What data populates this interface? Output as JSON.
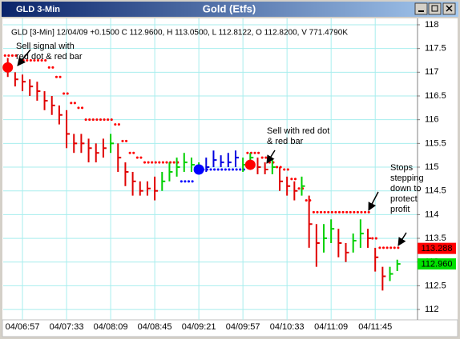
{
  "window": {
    "title_left": "GLD 3-Min",
    "title_center": "Gold (Etfs)"
  },
  "chart_data": {
    "type": "ohlc",
    "info": "GLD [3-Min] 12/04/09 +0.1500 C 112.9600, H 113.0500, L 112.8122, O 112.8200, V 771.4790K",
    "categories": [
      null,
      null,
      "04/06:57",
      null,
      null,
      null,
      null,
      null,
      "04/07:33",
      null,
      null,
      null,
      null,
      null,
      "04/08:09",
      null,
      null,
      null,
      null,
      null,
      "04/08:45",
      null,
      null,
      null,
      null,
      null,
      "04/09:21",
      null,
      null,
      null,
      null,
      null,
      "04/09:57",
      null,
      null,
      null,
      null,
      null,
      "04/10:33",
      null,
      null,
      null,
      null,
      null,
      "04/11:09",
      null,
      null,
      null,
      null,
      null,
      "04/11:45",
      null,
      null,
      null
    ],
    "high": [
      117.3,
      117.0,
      116.95,
      116.85,
      116.8,
      116.6,
      116.5,
      116.3,
      116.2,
      115.7,
      115.7,
      115.6,
      115.5,
      115.6,
      115.7,
      115.5,
      115.1,
      114.9,
      114.7,
      114.7,
      114.8,
      114.9,
      115.1,
      115.2,
      115.3,
      115.2,
      115.1,
      115.2,
      115.35,
      115.25,
      115.3,
      115.35,
      115.2,
      115.3,
      115.2,
      115.1,
      115.15,
      115.0,
      114.8,
      114.7,
      114.8,
      114.4,
      113.8,
      113.8,
      113.9,
      113.7,
      113.4,
      113.6,
      113.9,
      113.7,
      113.3,
      112.9,
      112.9,
      113.05
    ],
    "low": [
      116.9,
      116.7,
      116.6,
      116.5,
      116.4,
      116.2,
      116.1,
      115.9,
      115.4,
      115.3,
      115.3,
      115.1,
      115.1,
      115.2,
      115.3,
      114.9,
      114.6,
      114.4,
      114.4,
      114.4,
      114.3,
      114.5,
      114.7,
      114.8,
      114.9,
      114.9,
      114.9,
      114.9,
      115.0,
      115.0,
      115.0,
      115.0,
      114.9,
      115.0,
      114.85,
      114.85,
      114.85,
      114.5,
      114.4,
      114.3,
      114.4,
      113.3,
      112.9,
      113.2,
      113.4,
      113.1,
      113.0,
      113.2,
      113.3,
      113.3,
      112.8,
      112.4,
      112.6,
      112.81
    ],
    "close": [
      117.1,
      116.85,
      116.8,
      116.7,
      116.6,
      116.4,
      116.3,
      116.1,
      115.7,
      115.5,
      115.5,
      115.4,
      115.3,
      115.4,
      115.5,
      115.2,
      114.9,
      114.7,
      114.5,
      114.55,
      114.5,
      114.7,
      114.9,
      115.0,
      115.1,
      115.05,
      115.0,
      115.0,
      115.15,
      115.1,
      115.1,
      115.2,
      115.05,
      115.2,
      115.0,
      114.95,
      115.0,
      114.7,
      114.6,
      114.5,
      114.6,
      113.8,
      113.4,
      113.5,
      113.7,
      113.4,
      113.2,
      113.45,
      113.6,
      113.5,
      113.1,
      112.7,
      112.75,
      112.96
    ],
    "colors": [
      "#e00000",
      "#e00000",
      "#e00000",
      "#e00000",
      "#e00000",
      "#e00000",
      "#e00000",
      "#e00000",
      "#e00000",
      "#e00000",
      "#e00000",
      "#e00000",
      "#e00000",
      "#e00000",
      "#00d000",
      "#e00000",
      "#e00000",
      "#e00000",
      "#e00000",
      "#e00000",
      "#e00000",
      "#00d000",
      "#00d000",
      "#00d000",
      "#00d000",
      "#00d000",
      "#00d000",
      "#0000e0",
      "#0000e0",
      "#0000e0",
      "#0000e0",
      "#0000e0",
      "#00d000",
      "#00d000",
      "#e00000",
      "#e00000",
      "#00d000",
      "#e00000",
      "#e00000",
      "#e00000",
      "#00d000",
      "#e00000",
      "#e00000",
      "#00d000",
      "#00d000",
      "#e00000",
      "#e00000",
      "#00d000",
      "#00d000",
      "#e00000",
      "#e00000",
      "#e00000",
      "#00d000",
      "#00d000"
    ],
    "stops": [
      {
        "color": "#ff0000",
        "values": [
          117.35,
          117.35,
          117.25,
          117.25,
          117.25,
          117.25,
          117.1,
          116.9,
          116.55,
          116.35,
          116.25,
          116.0,
          116.0,
          116.0,
          116.0,
          115.9,
          115.55,
          115.3,
          115.2,
          115.1,
          115.1,
          115.1,
          115.1,
          115.1,
          null,
          null,
          null,
          null,
          null,
          null,
          null,
          null,
          null,
          115.3,
          115.3,
          115.2,
          115.1,
          115.0,
          114.95,
          114.75,
          114.55,
          114.3,
          114.05,
          114.05,
          114.05,
          114.05,
          114.05,
          114.05,
          114.05,
          114.05,
          113.5,
          113.3,
          113.3,
          113.3
        ]
      },
      {
        "color": "#0000ff",
        "values": [
          null,
          null,
          null,
          null,
          null,
          null,
          null,
          null,
          null,
          null,
          null,
          null,
          null,
          null,
          null,
          null,
          null,
          null,
          null,
          null,
          null,
          null,
          null,
          null,
          114.7,
          114.7,
          114.95,
          114.95,
          114.95,
          114.95,
          114.95,
          114.95,
          114.95,
          null,
          null,
          null,
          null,
          null,
          null,
          null,
          null,
          null,
          null,
          null,
          null,
          null,
          null,
          null,
          null,
          null,
          null,
          null,
          null,
          null
        ]
      }
    ],
    "signals": [
      {
        "color": "#ff0000",
        "values": [
          117.1,
          null,
          null,
          null,
          null,
          null,
          null,
          null,
          null,
          null,
          null,
          null,
          null,
          null,
          null,
          null,
          null,
          null,
          null,
          null,
          null,
          null,
          null,
          null,
          null,
          null,
          null,
          null,
          null,
          null,
          null,
          null,
          null,
          115.05,
          null,
          null,
          null,
          null,
          null,
          null,
          null,
          null,
          null,
          null,
          null,
          null,
          null,
          null,
          null,
          null,
          null,
          null,
          null,
          null
        ]
      },
      {
        "color": "#0000ff",
        "values": [
          null,
          null,
          null,
          null,
          null,
          null,
          null,
          null,
          null,
          null,
          null,
          null,
          null,
          null,
          null,
          null,
          null,
          null,
          null,
          null,
          null,
          null,
          null,
          null,
          null,
          null,
          114.95,
          null,
          null,
          null,
          null,
          null,
          null,
          null,
          null,
          null,
          null,
          null,
          null,
          null,
          null,
          null,
          null,
          null,
          null,
          null,
          null,
          null,
          null,
          null,
          null,
          null,
          null,
          null
        ]
      }
    ],
    "last_prices": [
      {
        "value": 113.288,
        "label": "113.288",
        "color": "#ff0000"
      },
      {
        "value": 112.96,
        "label": "112.960",
        "color": "#00e000"
      }
    ],
    "annotations": [
      {
        "lines": [
          "Sell signal with",
          "red dot & red bar"
        ]
      },
      {
        "lines": [
          "Sell with red dot",
          "& red bar"
        ]
      },
      {
        "lines": [
          "Stops",
          "stepping",
          "down to",
          "protect",
          "profit"
        ]
      }
    ],
    "ylim": [
      111.85,
      118.05
    ],
    "yticks": [
      112,
      112.5,
      113,
      113.5,
      114,
      114.5,
      115,
      115.5,
      116,
      116.5,
      117,
      117.5,
      118
    ],
    "grid": true
  }
}
